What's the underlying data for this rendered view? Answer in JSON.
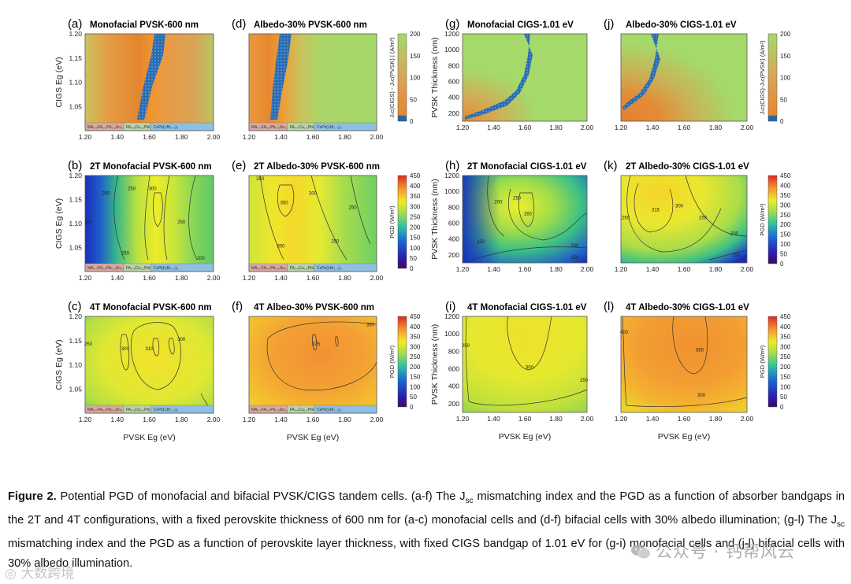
{
  "figure": {
    "panels": [
      {
        "id": "a",
        "label": "(a)",
        "title": "Monofacial PVSK-600 nm",
        "kind": "mismatch",
        "xaxis": "pvsk",
        "yaxis": "cigs",
        "contours": []
      },
      {
        "id": "b",
        "label": "(b)",
        "title": "2T Monofacial PVSK-600 nm",
        "kind": "pgd",
        "xaxis": "pvsk",
        "yaxis": "cigs",
        "contours": [
          {
            "text": "300",
            "x": 1.62,
            "y": 1.17
          },
          {
            "text": "250",
            "x": 1.49,
            "y": 1.17
          },
          {
            "text": "200",
            "x": 1.33,
            "y": 1.16
          },
          {
            "text": "250",
            "x": 1.45,
            "y": 1.035
          },
          {
            "text": "250",
            "x": 1.8,
            "y": 1.1
          },
          {
            "text": "200",
            "x": 1.92,
            "y": 1.025
          },
          {
            "text": "150",
            "x": 1.22,
            "y": 1.1
          }
        ]
      },
      {
        "id": "c",
        "label": "(c)",
        "title": "4T Monofacial PVSK-600 nm",
        "kind": "pgd",
        "xaxis": "pvsk",
        "yaxis": "cigs",
        "contours": [
          {
            "text": "300",
            "x": 1.45,
            "y": 1.13
          },
          {
            "text": "310",
            "x": 1.6,
            "y": 1.13
          },
          {
            "text": "300",
            "x": 1.8,
            "y": 1.15
          },
          {
            "text": "250",
            "x": 1.22,
            "y": 1.14
          }
        ]
      },
      {
        "id": "d",
        "label": "(d)",
        "title": "Albedo-30% PVSK-600 nm",
        "kind": "mismatch",
        "xaxis": "pvsk",
        "yaxis": "cigs",
        "contours": []
      },
      {
        "id": "e",
        "label": "(e)",
        "title": "2T Albedo-30% PVSK-600 nm",
        "kind": "pgd",
        "xaxis": "pvsk",
        "yaxis": "cigs",
        "contours": [
          {
            "text": "250",
            "x": 1.27,
            "y": 1.19
          },
          {
            "text": "350",
            "x": 1.42,
            "y": 1.14
          },
          {
            "text": "300",
            "x": 1.6,
            "y": 1.16
          },
          {
            "text": "300",
            "x": 1.4,
            "y": 1.05
          },
          {
            "text": "250",
            "x": 1.74,
            "y": 1.06
          },
          {
            "text": "250",
            "x": 1.85,
            "y": 1.13
          }
        ]
      },
      {
        "id": "f",
        "label": "(f)",
        "title": "4T Albeo-30% PVSK-600 nm",
        "kind": "pgd",
        "xaxis": "pvsk",
        "yaxis": "cigs",
        "contours": [
          {
            "text": "375",
            "x": 1.62,
            "y": 1.14
          },
          {
            "text": "350",
            "x": 1.96,
            "y": 1.18
          }
        ]
      },
      {
        "id": "g",
        "label": "(g)",
        "title": "Monofacial CIGS-1.01 eV",
        "kind": "mismatch",
        "xaxis": "pvsk",
        "yaxis": "thick",
        "contours": []
      },
      {
        "id": "h",
        "label": "(h)",
        "title": "2T Monofacial CIGS-1.01 eV",
        "kind": "pgd",
        "xaxis": "pvsk",
        "yaxis": "thick",
        "contours": [
          {
            "text": "250",
            "x": 1.55,
            "y": 900
          },
          {
            "text": "265",
            "x": 1.62,
            "y": 700
          },
          {
            "text": "200",
            "x": 1.43,
            "y": 850
          },
          {
            "text": "200",
            "x": 1.92,
            "y": 300
          },
          {
            "text": "150",
            "x": 1.92,
            "y": 150
          },
          {
            "text": "150",
            "x": 1.32,
            "y": 350
          }
        ]
      },
      {
        "id": "i",
        "label": "(i)",
        "title": "4T Monofacial CIGS-1.01 eV",
        "kind": "pgd",
        "xaxis": "pvsk",
        "yaxis": "thick",
        "contours": [
          {
            "text": "300",
            "x": 1.63,
            "y": 600
          },
          {
            "text": "250",
            "x": 1.22,
            "y": 850
          },
          {
            "text": "250",
            "x": 1.98,
            "y": 450
          }
        ]
      },
      {
        "id": "j",
        "label": "(j)",
        "title": "Albedo-30% CIGS-1.01 eV",
        "kind": "mismatch",
        "xaxis": "pvsk",
        "yaxis": "thick",
        "contours": []
      },
      {
        "id": "k",
        "label": "(k)",
        "title": "2T Albedo-30% CIGS-1.01 eV",
        "kind": "pgd",
        "xaxis": "pvsk",
        "yaxis": "thick",
        "contours": [
          {
            "text": "315",
            "x": 1.42,
            "y": 750
          },
          {
            "text": "300",
            "x": 1.57,
            "y": 800
          },
          {
            "text": "250",
            "x": 1.23,
            "y": 650
          },
          {
            "text": "250",
            "x": 1.72,
            "y": 650
          },
          {
            "text": "200",
            "x": 1.92,
            "y": 450
          },
          {
            "text": "150",
            "x": 1.93,
            "y": 180
          }
        ]
      },
      {
        "id": "l",
        "label": "(l)",
        "title": "4T Albedo-30% CIGS-1.01 eV",
        "kind": "pgd",
        "xaxis": "pvsk",
        "yaxis": "thick",
        "contours": [
          {
            "text": "350",
            "x": 1.7,
            "y": 800
          },
          {
            "text": "400",
            "x": 1.22,
            "y": 1000
          },
          {
            "text": "300",
            "x": 1.71,
            "y": 280
          }
        ]
      }
    ],
    "axes": {
      "pvsk": {
        "label": "PVSK Eg (eV)",
        "range": [
          1.2,
          2.0
        ],
        "ticks": [
          "1.20",
          "1.40",
          "1.60",
          "1.80",
          "2.00"
        ]
      },
      "cigs": {
        "label": "CIGS Eg (eV)",
        "range": [
          1.0,
          1.2
        ],
        "ticks": [
          "1.05",
          "1.10",
          "1.15",
          "1.20"
        ]
      },
      "thick": {
        "label": "PVSK Thickness (nm)",
        "range": [
          100,
          1200
        ],
        "ticks": [
          "200",
          "400",
          "600",
          "800",
          "1000",
          "1200"
        ]
      }
    },
    "phase_bands": [
      {
        "text": "MA₀.₇FA₀.₃Pb₀.₅Sn₀.₅I₃",
        "range": [
          1.2,
          1.44
        ],
        "color": "#d9a9a0"
      },
      {
        "text": "FA₀.₈Cs₀.₂PbI₃",
        "range": [
          1.44,
          1.61
        ],
        "color": "#b9d3a9"
      },
      {
        "text": "CsPb(IₓBr₁₋ₓ)₃",
        "range": [
          1.61,
          2.0
        ],
        "color": "#8fbfe2"
      }
    ],
    "colorbars": {
      "mismatch": {
        "label": "Jₛᴄ(CIGS) - Jₛᴄ(PVSK) | (A/m²)",
        "label_alt": "Jₛᴄ(CIGS)-Jₛᴄ(PVSK) (A/m²)",
        "ticks": [
          "0",
          "50",
          "100",
          "150",
          "200"
        ]
      },
      "pgd": {
        "label": "PGD (W/m²)",
        "ticks_a": [
          "0",
          "50",
          "100",
          "150",
          "200",
          "250",
          "300",
          "350",
          "400",
          "450"
        ]
      }
    },
    "colors": {
      "green": "#a5d96a",
      "orange": "#e58a34",
      "blue": "#2765a8"
    }
  },
  "caption": {
    "bold": "Figure 2.",
    "text": "Potential PGD of monofacial and bifacial PVSK/CIGS tandem cells. (a-f) The J_sc mismatching index and the PGD as a function of absorber bandgaps in the 2T and 4T configurations, with a fixed perovskite thickness of 600 nm for (a-c) monofacial cells and (d-f) bifacial cells with 30% albedo illumination; (g-l) The J_sc mismatching index and the PGD as a function of perovskite layer thickness, with fixed CIGS bandgap of 1.01 eV for (g-i) monofacial cells and (j-l) bifacial cells with 30% albedo illumination.",
    "seg1": "Potential PGD of monofacial and bifacial PVSK/CIGS tandem cells. (a-f) The J",
    "sub": "sc",
    "seg2": " mismatching index and the PGD as a function of absorber bandgaps in the 2T and 4T configurations, with a fixed perovskite thickness of 600 nm for (a-c) monofacial cells and (d-f) bifacial cells with 30% albedo illumination; (g-l) The J",
    "seg3": " mismatching index and the PGD as a function of perovskite layer thickness, with fixed CIGS bandgap of 1.01 eV for (g-i) monofacial cells and (j-l) bifacial cells with 30% albedo illumination."
  },
  "watermarks": {
    "right": "公众号 · 钙帮风云",
    "left": "◎ 大数跨境"
  }
}
